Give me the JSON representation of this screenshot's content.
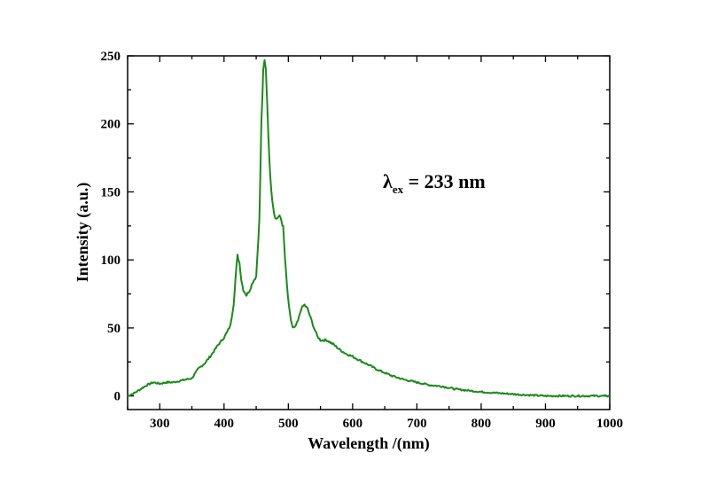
{
  "chart_data": {
    "type": "line",
    "xlabel": "Wavelength /(nm)",
    "ylabel": "Intensity (a.u.)",
    "xlim": [
      250,
      1000
    ],
    "ylim": [
      -10,
      250
    ],
    "xticks": [
      300,
      400,
      500,
      600,
      700,
      800,
      900,
      1000
    ],
    "yticks": [
      0,
      50,
      100,
      150,
      200,
      250
    ],
    "grid": false,
    "line_color": "#1a8a1a",
    "annotation": {
      "lambda": "λ",
      "subscript": "ex",
      "rest": " = 233 nm"
    },
    "series": [
      {
        "x": [
          250,
          260,
          270,
          280,
          290,
          300,
          310,
          320,
          330,
          340,
          350,
          360,
          370,
          380,
          390,
          400,
          405,
          410,
          415,
          418,
          421,
          424,
          427,
          430,
          435,
          440,
          445,
          450,
          455,
          458,
          461,
          463,
          465,
          467,
          469,
          472,
          475,
          478,
          481,
          485,
          488,
          492,
          495,
          498,
          501,
          504,
          507,
          510,
          515,
          520,
          525,
          530,
          535,
          540,
          545,
          550,
          560,
          570,
          580,
          590,
          600,
          620,
          640,
          660,
          680,
          700,
          720,
          740,
          760,
          780,
          800,
          830,
          860,
          900,
          950,
          1000
        ],
        "y": [
          0,
          2,
          5,
          8,
          10,
          9,
          10,
          10,
          11,
          12,
          13,
          20,
          24,
          30,
          37,
          43,
          47,
          52,
          68,
          88,
          103,
          98,
          85,
          78,
          74,
          78,
          84,
          88,
          130,
          200,
          238,
          246,
          240,
          218,
          192,
          160,
          145,
          134,
          130,
          132,
          131,
          124,
          100,
          80,
          65,
          56,
          50,
          50,
          55,
          64,
          67,
          64,
          57,
          50,
          44,
          41,
          41,
          38,
          34,
          31,
          29,
          24,
          19,
          15,
          12,
          10,
          8,
          7,
          5,
          4,
          3,
          2,
          1,
          0,
          0,
          0
        ]
      }
    ]
  }
}
